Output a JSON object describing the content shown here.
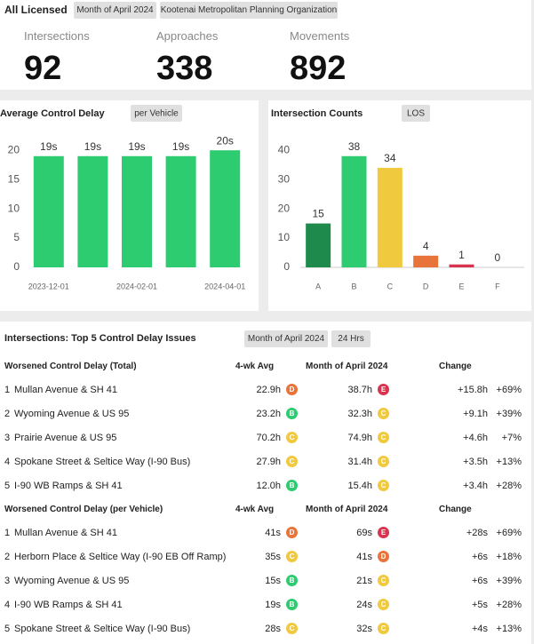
{
  "header": {
    "title": "All Licensed",
    "filters": [
      "Month of April 2024",
      "Kootenai Metropolitan Planning Organization"
    ]
  },
  "kpis": [
    {
      "label": "Intersections",
      "value": 92
    },
    {
      "label": "Approaches",
      "value": 338
    },
    {
      "label": "Movements",
      "value": 892
    }
  ],
  "chart_data": [
    {
      "type": "bar",
      "title": "Average Control Delay",
      "badge": "per Vehicle",
      "categories": [
        "2023-12-01",
        null,
        "2024-02-01",
        null,
        "2024-04-01"
      ],
      "values": [
        19,
        19,
        19,
        19,
        20
      ],
      "value_labels": [
        "19s",
        "19s",
        "19s",
        "19s",
        "20s"
      ],
      "color": "#2ecc71",
      "ylim": [
        0,
        22
      ],
      "yticks": [
        0,
        5,
        10,
        15,
        20
      ],
      "grid": false
    },
    {
      "type": "bar",
      "title": "Intersection Counts",
      "badge": "LOS",
      "categories": [
        "A",
        "B",
        "C",
        "D",
        "E",
        "F"
      ],
      "values": [
        15,
        38,
        34,
        4,
        1,
        0
      ],
      "colors": [
        "#1e8a4c",
        "#2ecc71",
        "#f0c93e",
        "#e8743b",
        "#d9344f",
        "#9e9e9e"
      ],
      "ylim": [
        0,
        44
      ],
      "yticks": [
        0,
        10,
        20,
        30,
        40
      ],
      "grid": false
    }
  ],
  "section": {
    "title": "Intersections: Top 5 Control Delay Issues",
    "badges": [
      "Month of April 2024",
      "24 Hrs"
    ]
  },
  "tables": [
    {
      "header": [
        "Worsened Control Delay (Total)",
        "4-wk Avg",
        "Month of April 2024",
        "Change"
      ],
      "rows": [
        [
          "1",
          "Mullan Avenue & SH 41",
          "22.9h",
          "D",
          "38.7h",
          "E",
          "+15.8h",
          "+69%"
        ],
        [
          "2",
          "Wyoming Avenue & US 95",
          "23.2h",
          "B",
          "32.3h",
          "C",
          "+9.1h",
          "+39%"
        ],
        [
          "3",
          "Prairie Avenue & US 95",
          "70.2h",
          "C",
          "74.9h",
          "C",
          "+4.6h",
          "+7%"
        ],
        [
          "4",
          "Spokane Street & Seltice Way (I-90 Bus)",
          "27.9h",
          "C",
          "31.4h",
          "C",
          "+3.5h",
          "+13%"
        ],
        [
          "5",
          "I-90 WB Ramps & SH 41",
          "12.0h",
          "B",
          "15.4h",
          "C",
          "+3.4h",
          "+28%"
        ]
      ]
    },
    {
      "header": [
        "Worsened Control Delay (per Vehicle)",
        "4-wk Avg",
        "Month of April 2024",
        "Change"
      ],
      "rows": [
        [
          "1",
          "Mullan Avenue & SH 41",
          "41s",
          "D",
          "69s",
          "E",
          "+28s",
          "+69%"
        ],
        [
          "2",
          "Herborn Place & Seltice Way (I-90 EB Off Ramp)",
          "35s",
          "C",
          "41s",
          "D",
          "+6s",
          "+18%"
        ],
        [
          "3",
          "Wyoming Avenue & US 95",
          "15s",
          "B",
          "21s",
          "C",
          "+6s",
          "+39%"
        ],
        [
          "4",
          "I-90 WB Ramps & SH 41",
          "19s",
          "B",
          "24s",
          "C",
          "+5s",
          "+28%"
        ],
        [
          "5",
          "Spokane Street & Seltice Way (I-90 Bus)",
          "28s",
          "C",
          "32s",
          "C",
          "+4s",
          "+13%"
        ]
      ]
    }
  ]
}
